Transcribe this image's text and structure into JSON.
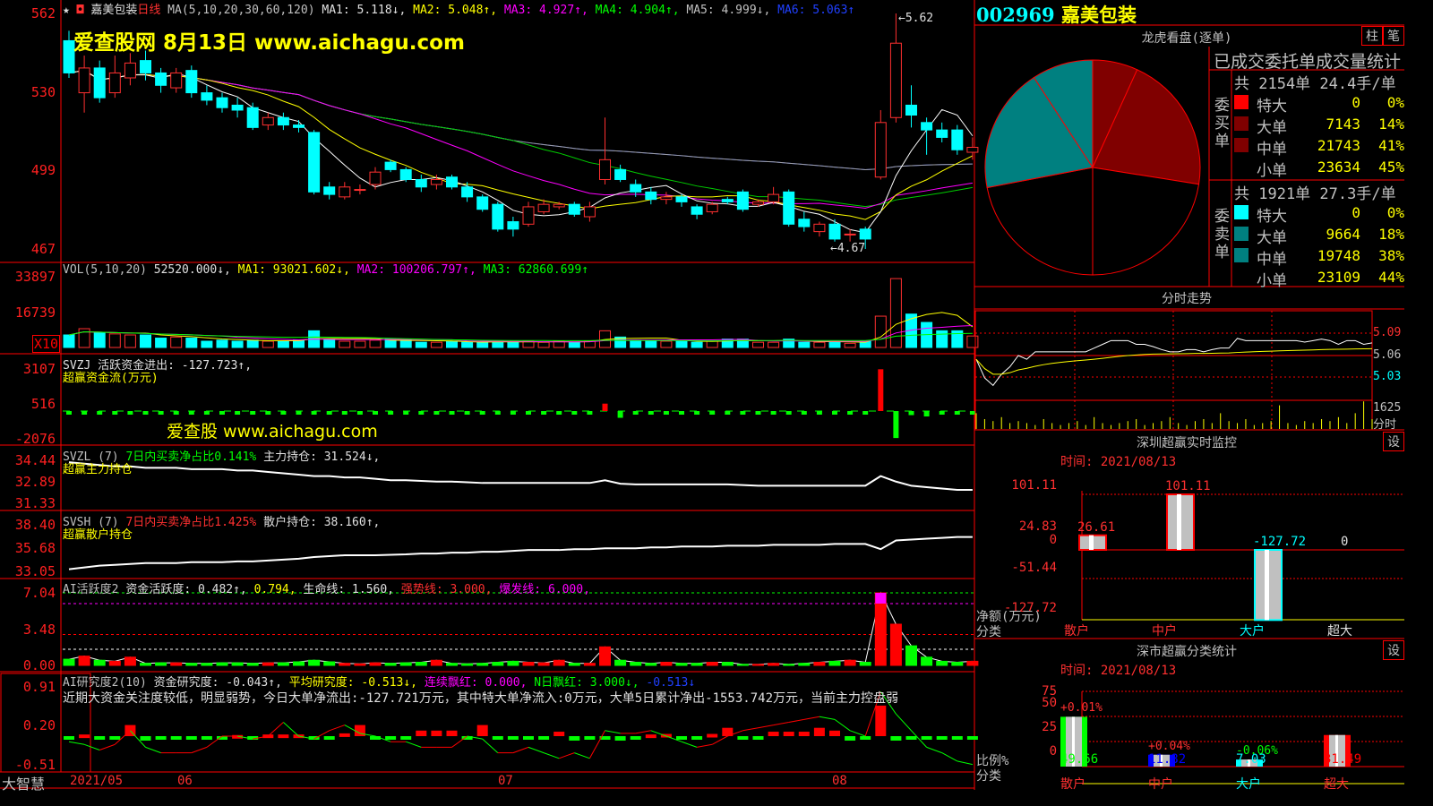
{
  "header": {
    "star": "★",
    "stock_name": "嘉美包装",
    "period": "日线",
    "ma_label": "MA(5,10,20,30,60,120)",
    "ma1": "MA1: 5.118↓,",
    "ma2": "MA2: 5.048↑,",
    "ma3": "MA3: 4.927↑,",
    "ma4": "MA4: 4.904↑,",
    "ma5": "MA5: 4.999↓,",
    "ma6": "MA6: 5.063↑",
    "watermark": "爱查股网   8月13日   www.aichagu.com"
  },
  "price_axis": [
    "562",
    "530",
    "499",
    "467"
  ],
  "price_marks": {
    "high": "5.62",
    "low": "4.67"
  },
  "candles": [
    [
      5.51,
      5.38,
      5.55,
      5.36
    ],
    [
      5.3,
      5.4,
      5.45,
      5.22
    ],
    [
      5.4,
      5.28,
      5.43,
      5.26
    ],
    [
      5.3,
      5.38,
      5.45,
      5.28
    ],
    [
      5.36,
      5.42,
      5.46,
      5.33
    ],
    [
      5.43,
      5.38,
      5.47,
      5.35
    ],
    [
      5.38,
      5.33,
      5.4,
      5.3
    ],
    [
      5.32,
      5.38,
      5.4,
      5.3
    ],
    [
      5.39,
      5.3,
      5.41,
      5.28
    ],
    [
      5.3,
      5.27,
      5.33,
      5.25
    ],
    [
      5.28,
      5.24,
      5.3,
      5.22
    ],
    [
      5.25,
      5.23,
      5.28,
      5.2
    ],
    [
      5.24,
      5.16,
      5.26,
      5.15
    ],
    [
      5.17,
      5.2,
      5.22,
      5.15
    ],
    [
      5.2,
      5.17,
      5.22,
      5.15
    ],
    [
      5.17,
      5.16,
      5.19,
      5.14
    ],
    [
      5.14,
      4.9,
      5.15,
      4.89
    ],
    [
      4.92,
      4.89,
      4.94,
      4.87
    ],
    [
      4.88,
      4.92,
      4.94,
      4.87
    ],
    [
      4.91,
      4.91,
      4.93,
      4.89
    ],
    [
      4.93,
      4.98,
      5.0,
      4.91
    ],
    [
      5.02,
      4.99,
      5.03,
      4.98
    ],
    [
      4.99,
      4.95,
      5.0,
      4.94
    ],
    [
      4.95,
      4.92,
      4.97,
      4.9
    ],
    [
      4.93,
      4.95,
      4.97,
      4.91
    ],
    [
      4.96,
      4.92,
      4.97,
      4.91
    ],
    [
      4.92,
      4.88,
      4.94,
      4.86
    ],
    [
      4.88,
      4.83,
      4.89,
      4.82
    ],
    [
      4.85,
      4.75,
      4.86,
      4.74
    ],
    [
      4.78,
      4.75,
      4.8,
      4.72
    ],
    [
      4.77,
      4.84,
      4.86,
      4.76
    ],
    [
      4.82,
      4.85,
      4.87,
      4.81
    ],
    [
      4.84,
      4.85,
      4.86,
      4.83
    ],
    [
      4.85,
      4.81,
      4.86,
      4.8
    ],
    [
      4.8,
      4.84,
      4.86,
      4.78
    ],
    [
      4.95,
      5.03,
      5.2,
      4.93
    ],
    [
      4.99,
      4.95,
      5.01,
      4.94
    ],
    [
      4.93,
      4.9,
      4.95,
      4.88
    ],
    [
      4.9,
      4.87,
      4.92,
      4.85
    ],
    [
      4.87,
      4.88,
      4.9,
      4.85
    ],
    [
      4.88,
      4.86,
      4.89,
      4.84
    ],
    [
      4.84,
      4.81,
      4.85,
      4.79
    ],
    [
      4.82,
      4.85,
      4.86,
      4.81
    ],
    [
      4.87,
      4.86,
      4.88,
      4.85
    ],
    [
      4.9,
      4.83,
      4.91,
      4.82
    ],
    [
      4.85,
      4.86,
      4.87,
      4.84
    ],
    [
      4.86,
      4.89,
      4.92,
      4.85
    ],
    [
      4.9,
      4.77,
      4.91,
      4.76
    ],
    [
      4.79,
      4.76,
      4.82,
      4.74
    ],
    [
      4.74,
      4.77,
      4.78,
      4.72
    ],
    [
      4.77,
      4.71,
      4.79,
      4.7
    ],
    [
      4.73,
      4.73,
      4.75,
      4.7
    ],
    [
      4.75,
      4.71,
      4.76,
      4.67
    ],
    [
      4.96,
      5.18,
      5.23,
      4.95
    ],
    [
      5.2,
      5.5,
      5.62,
      5.18
    ],
    [
      5.25,
      5.21,
      5.33,
      5.16
    ],
    [
      5.18,
      5.15,
      5.2,
      5.05
    ],
    [
      5.15,
      5.12,
      5.18,
      5.1
    ],
    [
      5.15,
      5.07,
      5.17,
      5.05
    ],
    [
      5.06,
      5.08,
      5.12,
      5.03
    ]
  ],
  "volume": {
    "label": "VOL(5,10,20)",
    "value": "52520.000↓,",
    "ma1": "MA1: 93021.602↓,",
    "ma2": "MA2: 100206.797↑,",
    "ma3": "MA3: 62860.699↑",
    "axis": [
      "33897",
      "16739"
    ],
    "unit": "X10",
    "values": [
      6000,
      9000,
      7000,
      6500,
      6000,
      6000,
      4500,
      5000,
      4500,
      3000,
      3500,
      3000,
      3500,
      3000,
      3000,
      3500,
      8000,
      4000,
      3000,
      3000,
      3500,
      4000,
      3500,
      2500,
      2500,
      3000,
      2500,
      2500,
      3000,
      2500,
      3000,
      2500,
      3000,
      2500,
      3000,
      8000,
      5000,
      3500,
      3000,
      3000,
      3000,
      2500,
      3000,
      4000,
      4000,
      2500,
      2500,
      4000,
      2500,
      2500,
      2500,
      2000,
      3000,
      15000,
      33000,
      16000,
      12000,
      8000,
      8000,
      5500
    ]
  },
  "svzj": {
    "label": "SVZJ  活跃资金进出: -127.723↑,",
    "sub": "超赢资金流(万元)",
    "watermark": "爱查股  www.aichagu.com",
    "axis": [
      "3107",
      "516",
      "-2076"
    ],
    "values": [
      -150,
      -150,
      -150,
      -150,
      -150,
      -150,
      -150,
      -150,
      -150,
      -150,
      -150,
      -150,
      -150,
      -150,
      -150,
      -150,
      -150,
      -150,
      -150,
      -150,
      -150,
      -150,
      -150,
      -150,
      -150,
      -150,
      -150,
      -150,
      -150,
      -150,
      -150,
      -150,
      -150,
      -150,
      -150,
      550,
      -500,
      -200,
      -150,
      -150,
      -150,
      -150,
      -150,
      -150,
      -150,
      -150,
      -150,
      -150,
      -150,
      -150,
      -150,
      -150,
      -150,
      3100,
      -2000,
      -300,
      -400,
      -200,
      -150,
      -150
    ]
  },
  "svzl": {
    "label": "SVZL (7)",
    "ratio": "7日内买卖净占比0.141%",
    "hold": "主力持仓: 31.524↓,",
    "sub": "超赢主力持仓",
    "axis": [
      "34.44",
      "32.89",
      "31.33"
    ],
    "values": [
      34.3,
      34.2,
      34.1,
      34.0,
      34.0,
      33.9,
      33.9,
      33.9,
      33.8,
      33.8,
      33.8,
      33.7,
      33.7,
      33.6,
      33.5,
      33.4,
      33.3,
      33.3,
      33.2,
      33.2,
      33.1,
      33.0,
      33.0,
      32.95,
      32.9,
      32.9,
      32.85,
      32.8,
      32.8,
      32.8,
      32.8,
      32.8,
      32.8,
      32.8,
      32.8,
      33.0,
      32.75,
      32.7,
      32.7,
      32.7,
      32.7,
      32.7,
      32.7,
      32.7,
      32.65,
      32.6,
      32.6,
      32.6,
      32.6,
      32.6,
      32.6,
      32.6,
      32.6,
      33.3,
      32.9,
      32.6,
      32.5,
      32.4,
      32.3,
      32.3
    ]
  },
  "svsh": {
    "label": "SVSH (7)",
    "ratio": "7日内买卖净占比1.425%",
    "hold": "散户持仓: 38.160↑,",
    "sub": "超赢散户持仓",
    "axis": [
      "38.40",
      "35.68",
      "33.05"
    ],
    "values": [
      33.3,
      33.5,
      33.7,
      33.8,
      33.9,
      34.0,
      34.0,
      34.0,
      34.1,
      34.1,
      34.1,
      34.2,
      34.2,
      34.3,
      34.4,
      34.5,
      34.7,
      34.8,
      34.9,
      34.9,
      34.9,
      34.95,
      35.0,
      35.1,
      35.1,
      35.2,
      35.2,
      35.3,
      35.3,
      35.4,
      35.5,
      35.5,
      35.5,
      35.6,
      35.6,
      35.7,
      35.7,
      35.7,
      35.8,
      35.8,
      35.9,
      35.9,
      35.9,
      36.0,
      36.0,
      36.0,
      36.1,
      36.1,
      36.1,
      36.1,
      36.2,
      36.2,
      36.2,
      35.6,
      36.6,
      36.7,
      36.8,
      36.9,
      37.0,
      37.0
    ]
  },
  "activity": {
    "label": "AI活跃度2",
    "level": "资金活跃度: 0.482↑,",
    "v2": "0.794,",
    "life": "生命线: 1.560,",
    "strong": "强势线: 3.000,",
    "burst": "爆发线: 6.000,",
    "axis": [
      "7.04",
      "3.48",
      "0.00"
    ],
    "values": [
      0.6,
      0.9,
      0.5,
      0.4,
      0.8,
      0.2,
      0.25,
      0.25,
      0.2,
      0.2,
      0.25,
      0.25,
      0.2,
      0.25,
      0.25,
      0.35,
      0.5,
      0.35,
      0.2,
      0.15,
      0.25,
      0.2,
      0.25,
      0.3,
      0.5,
      0.2,
      0.15,
      0.2,
      0.3,
      0.4,
      0.3,
      0.25,
      0.5,
      0.2,
      0.2,
      1.8,
      0.5,
      0.3,
      0.2,
      0.3,
      0.2,
      0.2,
      0.3,
      0.3,
      0.1,
      0.1,
      0.2,
      0.1,
      0.2,
      0.3,
      0.4,
      0.5,
      0.3,
      7.04,
      4.0,
      1.9,
      0.8,
      0.4,
      0.3,
      0.4
    ]
  },
  "research": {
    "label": "AI研究度2(10)",
    "level": "资金研究度: -0.043↑,",
    "avg": "平均研究度: -0.513↓,",
    "red": "连续飘红: 0.000,",
    "nred": "N日飘红: 3.000↓,",
    "v": "-0.513↓",
    "note": "近期大资金关注度较低，明显弱势，今日大单净流出:-127.721万元，其中特大单净流入:0万元，大单5日累计净出-1553.742万元，当前主力控盘弱",
    "axis": [
      "0.91",
      "0.20",
      "-0.51"
    ],
    "bars": [
      -0.05,
      0.03,
      -0.06,
      -0.06,
      0.2,
      -0.08,
      -0.05,
      -0.05,
      -0.05,
      -0.05,
      -0.05,
      0.02,
      -0.05,
      0.03,
      0.03,
      0.03,
      -0.05,
      -0.05,
      0.05,
      0.2,
      -0.05,
      -0.05,
      -0.05,
      0.1,
      0.1,
      0.1,
      -0.05,
      0.2,
      -0.05,
      -0.05,
      -0.06,
      -0.05,
      0.08,
      -0.08,
      -0.05,
      -0.05,
      -0.08,
      -0.05,
      0.03,
      0.04,
      -0.05,
      -0.05,
      0.04,
      0.15,
      -0.05,
      -0.05,
      0.08,
      0.08,
      0.08,
      0.15,
      0.1,
      -0.08,
      -0.05,
      0.55,
      -0.08,
      -0.05,
      -0.05,
      -0.06,
      -0.05,
      -0.05
    ],
    "line": [
      -0.1,
      -0.15,
      -0.25,
      -0.15,
      0.1,
      -0.2,
      -0.3,
      -0.3,
      -0.3,
      -0.2,
      0.0,
      0.0,
      -0.05,
      0.0,
      0.25,
      0.0,
      -0.05,
      0.1,
      0.2,
      0.05,
      0.0,
      -0.1,
      -0.1,
      -0.2,
      -0.2,
      -0.2,
      0.0,
      -0.05,
      -0.3,
      -0.3,
      -0.2,
      -0.3,
      -0.4,
      -0.3,
      -0.4,
      0.1,
      0.05,
      0.05,
      0.1,
      0.0,
      -0.1,
      -0.2,
      -0.15,
      0.0,
      0.1,
      0.15,
      0.2,
      0.25,
      0.3,
      0.35,
      0.3,
      0.1,
      0.0,
      0.8,
      0.4,
      0.1,
      -0.2,
      -0.3,
      -0.45,
      -0.51
    ]
  },
  "time_axis": {
    "brand": "大智慧",
    "labels": [
      "2021/05",
      "06",
      "07",
      "08"
    ]
  },
  "right": {
    "code": "002969",
    "name": "嘉美包装",
    "dragon_title": "龙虎看盘(逐单)",
    "btn_bar": "柱",
    "btn_count": "笔",
    "stat_title": "已成交委托单成交量统计",
    "buy": {
      "side": "委买单",
      "summary": "共 2154单 24.4手/单",
      "rows": [
        {
          "label": "特大",
          "value": "0",
          "pct": "0%",
          "color": "#ff0000"
        },
        {
          "label": "大单",
          "value": "7143",
          "pct": "14%",
          "color": "#800000"
        },
        {
          "label": "中单",
          "value": "21743",
          "pct": "41%",
          "color": "#800000"
        },
        {
          "label": "小单",
          "value": "23634",
          "pct": "45%",
          "color": "#000000"
        }
      ]
    },
    "sell": {
      "side": "委卖单",
      "summary": "共 1921单 27.3手/单",
      "rows": [
        {
          "label": "特大",
          "value": "0",
          "pct": "0%",
          "color": "#00ffff"
        },
        {
          "label": "大单",
          "value": "9664",
          "pct": "18%",
          "color": "#008080"
        },
        {
          "label": "中单",
          "value": "19748",
          "pct": "38%",
          "color": "#008080"
        },
        {
          "label": "小单",
          "value": "23109",
          "pct": "44%",
          "color": "#000000"
        }
      ]
    },
    "intraday": {
      "title": "分时走势",
      "axis": [
        "5.09",
        "5.06",
        "5.03"
      ],
      "vol_label": "1625",
      "vol_unit": "分时",
      "prices": [
        5.055,
        5.03,
        5.02,
        5.035,
        5.045,
        5.06,
        5.055,
        5.065,
        5.065,
        5.065,
        5.065,
        5.065,
        5.065,
        5.065,
        5.07,
        5.075,
        5.08,
        5.08,
        5.08,
        5.075,
        5.075,
        5.072,
        5.068,
        5.065,
        5.065,
        5.068,
        5.068,
        5.065,
        5.068,
        5.07,
        5.07,
        5.083,
        5.08,
        5.08,
        5.08,
        5.08,
        5.08,
        5.08,
        5.08,
        5.078,
        5.08,
        5.082,
        5.08,
        5.075,
        5.08,
        5.08,
        5.075,
        5.077
      ],
      "volumes": [
        8,
        5,
        4,
        6,
        3,
        4,
        3,
        2,
        5,
        3,
        2,
        3,
        4,
        2,
        6,
        3,
        2,
        3,
        4,
        5,
        2,
        3,
        4,
        6,
        3,
        2,
        4,
        5,
        3,
        8,
        4,
        3,
        5,
        2,
        3,
        4,
        12,
        3,
        2,
        4,
        3,
        5,
        4,
        6,
        3,
        8,
        14,
        5
      ]
    },
    "monitor": {
      "title": "深圳超赢实时监控",
      "settings": "设",
      "time": "时间: 2021/08/13",
      "axis": [
        "101.11",
        "24.83",
        "0",
        "-51.44",
        "-127.72"
      ],
      "unit_label": "净额(万元)",
      "cat_label": "分类",
      "cats": [
        {
          "name": "散户",
          "value": 26.61,
          "label": "26.61",
          "color": "#ff3030"
        },
        {
          "name": "中户",
          "value": 101.11,
          "label": "101.11",
          "color": "#ff3030"
        },
        {
          "name": "大户",
          "value": -127.72,
          "label": "-127.72",
          "color": "#00ffff"
        },
        {
          "name": "超大",
          "value": 0,
          "label": "0",
          "color": "#e0e0e0"
        }
      ]
    },
    "classify": {
      "title": "深市超赢分类统计",
      "settings": "设",
      "time": "时间: 2021/08/13",
      "axis": [
        "75",
        "50",
        "25",
        "0"
      ],
      "ratio_label": "比例%",
      "cat_label": "分类",
      "cats": [
        {
          "name": "散户",
          "value": 49.66,
          "label": "49.66",
          "change": "+0.01%",
          "color": "#00ff00",
          "name_color": "#ff3030",
          "change_color": "#ff3030"
        },
        {
          "name": "中户",
          "value": 11.82,
          "label": "11.82",
          "change": "+0.04%",
          "color": "#0000ff",
          "name_color": "#ff3030",
          "change_color": "#ff3030"
        },
        {
          "name": "大户",
          "value": 7.03,
          "label": "7.03",
          "change": "-0.06%",
          "color": "#00ffff",
          "name_color": "#00ffff",
          "change_color": "#00ff00"
        },
        {
          "name": "超大",
          "value": 31.49,
          "label": "31.49",
          "change": "",
          "color": "#ff0000",
          "name_color": "#ff3030",
          "change_color": "#ff3030"
        }
      ]
    }
  }
}
